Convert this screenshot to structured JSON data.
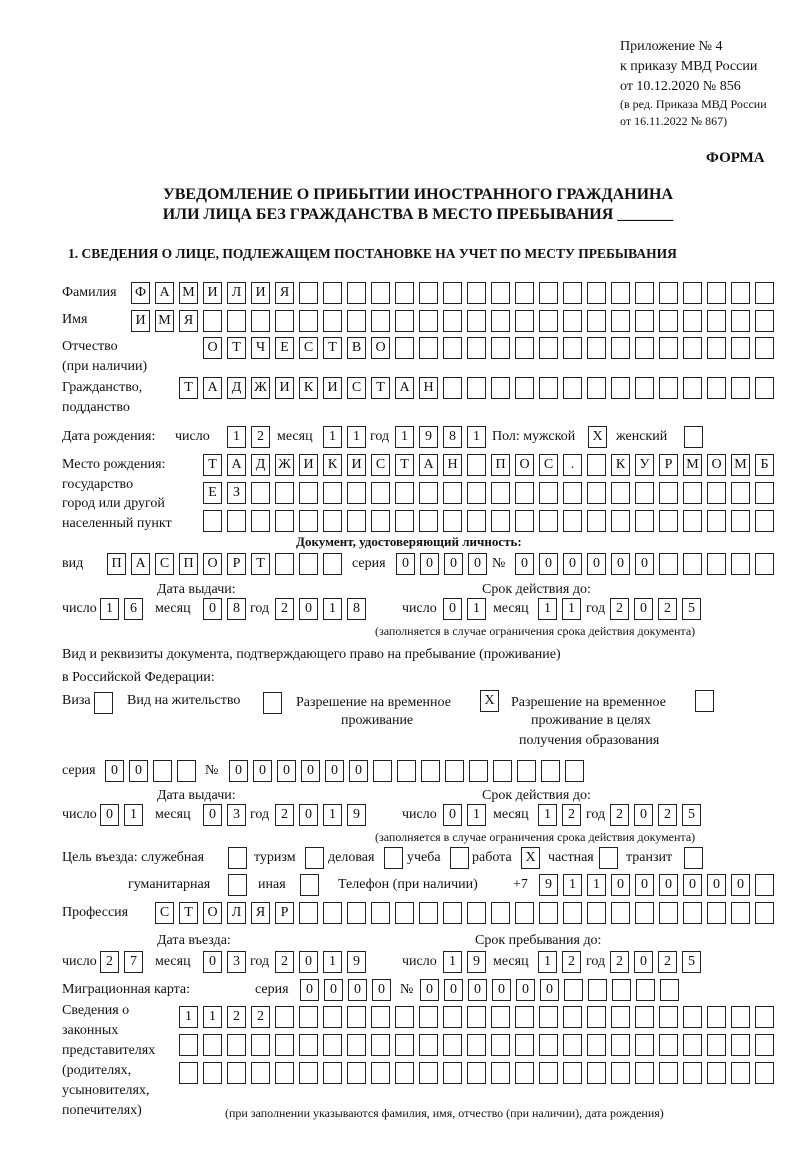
{
  "header": {
    "line1": "Приложение № 4",
    "line2": "к приказу МВД России",
    "line3": "от 10.12.2020 № 856",
    "line4": "(в ред. Приказа МВД России",
    "line5": "от 16.11.2022 № 867)",
    "form": "ФОРМА"
  },
  "title": {
    "line1": "УВЕДОМЛЕНИЕ О ПРИБЫТИИ ИНОСТРАННОГО ГРАЖДАНИНА",
    "line2": "ИЛИ ЛИЦА БЕЗ ГРАЖДАНСТВА В МЕСТО ПРЕБЫВАНИЯ _______"
  },
  "section1": "1. СВЕДЕНИЯ О ЛИЦЕ, ПОДЛЕЖАЩЕМ ПОСТАНОВКЕ НА УЧЕТ ПО МЕСТУ ПРЕБЫВАНИЯ",
  "labels": {
    "surname": "Фамилия",
    "name": "Имя",
    "patronymic": "Отчество",
    "patronymic2": "(при наличии)",
    "citizenship": "Гражданство,",
    "citizenship2": "подданство",
    "birth_date": "Дата рождения:",
    "day": "число",
    "month": "месяц",
    "year": "год",
    "sex_male": "Пол: мужской",
    "sex_female": "женский",
    "birthplace1": "Место рождения:",
    "birthplace2": "государство",
    "birthplace3": "город или другой",
    "birthplace4": "населенный пункт",
    "id_doc": "Документ, удостоверяющий личность:",
    "kind": "вид",
    "series": "серия",
    "number": "№",
    "issue_date": "Дата выдачи:",
    "valid_until": "Срок действия до:",
    "valid_note": "(заполняется в случае ограничения срока действия документа)",
    "right_doc1": "Вид и реквизиты документа, подтверждающего право на пребывание (проживание)",
    "right_doc2": "в Российской Федерации:",
    "visa": "Виза",
    "residence": "Вид на жительство",
    "trp1": "Разрешение на временное",
    "trp2": "проживание",
    "trpe1": "Разрешение на временное",
    "trpe2": "проживание в целях",
    "trpe3": "получения образования",
    "purpose": "Цель въезда: служебная",
    "tourism": "туризм",
    "business": "деловая",
    "study": "учеба",
    "work": "работа",
    "private": "частная",
    "transit": "транзит",
    "humanitarian": "гуманитарная",
    "other": "иная",
    "phone": "Телефон (при наличии)",
    "phone_prefix": "+7",
    "profession": "Профессия",
    "entry_date": "Дата въезда:",
    "stay_until": "Срок пребывания до:",
    "migration_card": "Миграционная карта:",
    "reps1": "Сведения о",
    "reps2": "законных",
    "reps3": "представителях",
    "reps4": "(родителях,",
    "reps5": "усыновителях,",
    "reps6": "попечителях)",
    "reps_note": "(при заполнении указываются фамилия, имя, отчество (при наличии), дата рождения)"
  },
  "values": {
    "surname": "ФАМИЛИЯ",
    "name": "ИМЯ",
    "patronymic": "ОТЧЕСТВО",
    "citizenship": "ТАДЖИКИСТАН",
    "birth": {
      "day": "12",
      "month": "11",
      "year": "1981"
    },
    "sex_male": "X",
    "sex_female": "",
    "birthplace": [
      "ТАДЖИКИСТАН ПОС. КУРМОМБ",
      "ЕЗ",
      ""
    ],
    "id_kind": "ПАСПОРТ",
    "id_series": "0000",
    "id_number": "000000",
    "id_issue": {
      "day": "16",
      "month": "08",
      "year": "2018"
    },
    "id_valid": {
      "day": "01",
      "month": "11",
      "year": "2025"
    },
    "visa": "",
    "residence": "",
    "trp": "X",
    "trpe": "",
    "rd_series": "00",
    "rd_number": "000000",
    "rd_issue": {
      "day": "01",
      "month": "03",
      "year": "2019"
    },
    "rd_valid": {
      "day": "01",
      "month": "12",
      "year": "2025"
    },
    "purpose": {
      "service": "",
      "tourism": "",
      "business": "",
      "study": "",
      "work": "X",
      "private": "",
      "transit": "",
      "humanitarian": "",
      "other": ""
    },
    "phone": "911000000",
    "profession": "СТОЛЯР",
    "entry": {
      "day": "27",
      "month": "03",
      "year": "2019"
    },
    "stay_until": {
      "day": "19",
      "month": "12",
      "year": "2025"
    },
    "mc_series": "0000",
    "mc_number": "000000",
    "reps": [
      "1122",
      "",
      ""
    ]
  }
}
